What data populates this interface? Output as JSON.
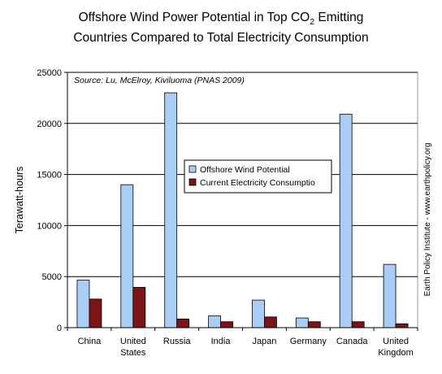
{
  "chart_data": {
    "type": "bar",
    "title_line1_pre": "Offshore Wind Power Potential in Top CO",
    "title_line1_sub": "2",
    "title_line1_post": " Emitting",
    "title_line2": "Countries Compared to Total Electricity Consumption",
    "source": "Source: Lu, McElroy, Kiviluoma (PNAS 2009)",
    "ylabel": "Terawatt-hours",
    "side_credit": "Earth Policy Institute - www.earthpolicy.org",
    "ylim": [
      0,
      25000
    ],
    "yticks": [
      "0",
      "5000",
      "10000",
      "15000",
      "20000",
      "25000"
    ],
    "ytick_values": [
      0,
      5000,
      10000,
      15000,
      20000,
      25000
    ],
    "grid": true,
    "legend_placement": "center",
    "categories": [
      [
        "China"
      ],
      [
        "United",
        "States"
      ],
      [
        "Russia"
      ],
      [
        "India"
      ],
      [
        "Japan"
      ],
      [
        "Germany"
      ],
      [
        "Canada"
      ],
      [
        "United",
        "Kingdom"
      ]
    ],
    "series": [
      {
        "name": "Offshore Wind Potential",
        "color": "#a9cdf5",
        "values": [
          4650,
          14000,
          23000,
          1150,
          2700,
          950,
          20900,
          6200
        ]
      },
      {
        "name": "Current Electricity Consumptio",
        "color": "#7b1416",
        "values": [
          2800,
          3950,
          850,
          580,
          1050,
          580,
          580,
          380
        ]
      }
    ]
  }
}
